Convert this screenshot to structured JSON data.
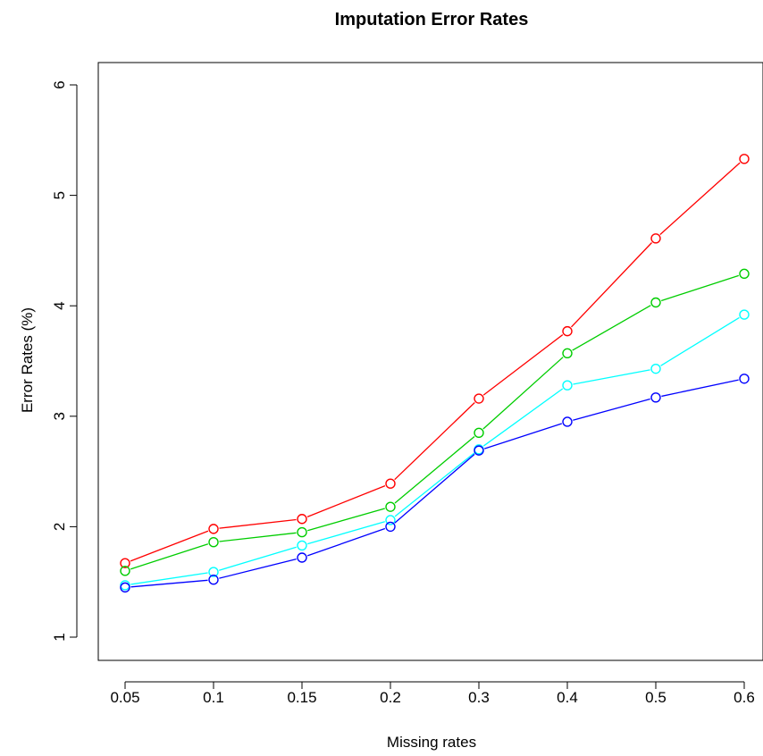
{
  "chart_data": {
    "type": "line",
    "title": "Imputation Error Rates",
    "xlabel": "Missing rates",
    "ylabel": "Error Rates (%)",
    "categories": [
      "0.05",
      "0.1",
      "0.15",
      "0.2",
      "0.3",
      "0.4",
      "0.5",
      "0.6"
    ],
    "yticks": [
      "1",
      "2",
      "3",
      "4",
      "5",
      "6"
    ],
    "ylim": [
      0.8,
      6.2
    ],
    "grid": false,
    "series": [
      {
        "color": "#ff0000",
        "values": [
          1.67,
          1.98,
          2.07,
          2.39,
          3.16,
          3.77,
          4.61,
          5.33
        ]
      },
      {
        "color": "#00cd00",
        "values": [
          1.6,
          1.86,
          1.95,
          2.18,
          2.85,
          3.57,
          4.03,
          4.29
        ]
      },
      {
        "color": "#00ffff",
        "values": [
          1.47,
          1.59,
          1.83,
          2.06,
          2.7,
          3.28,
          3.43,
          3.92
        ]
      },
      {
        "color": "#0000ff",
        "values": [
          1.45,
          1.52,
          1.72,
          2.0,
          2.69,
          2.95,
          3.17,
          3.34
        ]
      }
    ]
  }
}
